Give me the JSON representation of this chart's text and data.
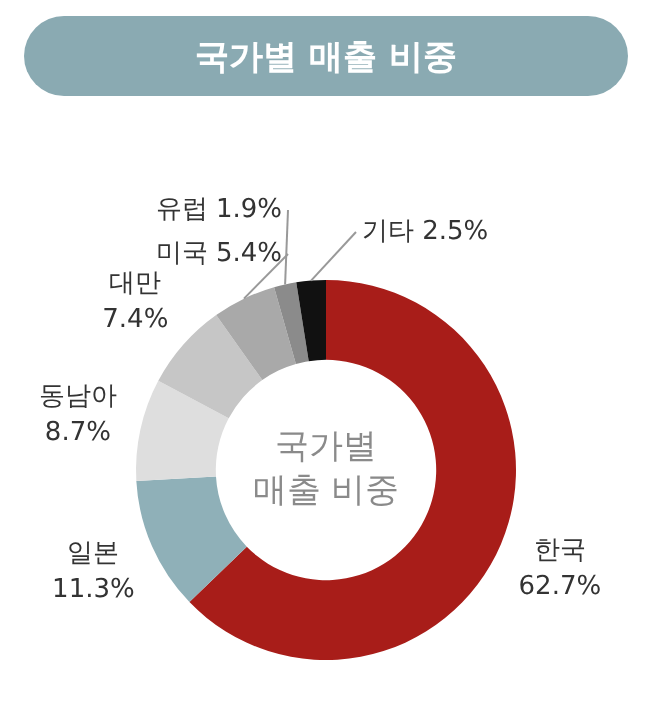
{
  "chart_data": {
    "type": "donut",
    "title": "국가별 매출 비중",
    "categories": [
      "한국",
      "일본",
      "동남아",
      "대만",
      "미국",
      "유럽",
      "기타"
    ],
    "values": [
      62.7,
      11.3,
      8.7,
      7.4,
      5.4,
      1.9,
      2.5
    ],
    "colors": [
      "#a81d19",
      "#8fb0b8",
      "#dedede",
      "#c6c6c6",
      "#a9a9a9",
      "#8b8b8b",
      "#111111"
    ],
    "value_labels": [
      "62.7%",
      "11.3%",
      "8.7%",
      "7.4%",
      "5.4%",
      "1.9%",
      "2.5%"
    ],
    "annotations": [
      "국가별\n매출 비중"
    ]
  }
}
